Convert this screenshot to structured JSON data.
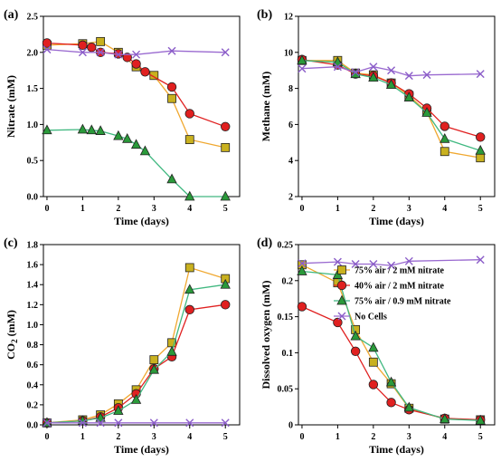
{
  "series_styles": [
    {
      "name": "75% air / 2 mM nitrate",
      "marker": "square",
      "fill": "#c9b11f",
      "line": "#f0a830"
    },
    {
      "name": "40% air / 2 mM nitrate",
      "marker": "circle",
      "fill": "#e02020",
      "line": "#e02020"
    },
    {
      "name": "75% air / 0.9 mM nitrate",
      "marker": "triangle",
      "fill": "#2a9a3a",
      "line": "#40b880"
    },
    {
      "name": "No Cells",
      "marker": "x",
      "fill": "#8a5cc8",
      "line": "#9a6ad0"
    }
  ],
  "chart_data": [
    {
      "type": "line",
      "panel_label": "(a)",
      "xlabel": "Time (days)",
      "ylabel": "Nitrate (mM)",
      "xlim": [
        -0.1,
        5.4
      ],
      "ylim": [
        0,
        2.5
      ],
      "xticks": [
        0,
        1,
        2,
        3,
        4,
        5
      ],
      "yticks": [
        0.0,
        0.5,
        1.0,
        1.5,
        2.0,
        2.5
      ],
      "ytick_labels": [
        "0.0",
        "0.5",
        "1.0",
        "1.5",
        "2.0",
        "2.5"
      ],
      "series": [
        {
          "name": "75% air / 2 mM nitrate",
          "x": [
            0,
            1,
            1.5,
            2,
            2.5,
            3,
            3.5,
            4,
            5
          ],
          "y": [
            2.1,
            2.12,
            2.15,
            2.0,
            1.8,
            1.68,
            1.36,
            0.79,
            0.68
          ]
        },
        {
          "name": "40% air / 2 mM nitrate",
          "x": [
            0,
            1,
            1.25,
            1.5,
            2,
            2.25,
            2.5,
            2.75,
            3.5,
            4,
            5
          ],
          "y": [
            2.13,
            2.1,
            2.07,
            2.0,
            1.98,
            1.93,
            1.84,
            1.73,
            1.52,
            1.15,
            0.97
          ]
        },
        {
          "name": "75% air / 0.9 mM nitrate",
          "x": [
            0,
            1,
            1.25,
            1.5,
            2,
            2.25,
            2.5,
            2.75,
            3.5,
            4,
            5
          ],
          "y": [
            0.92,
            0.93,
            0.92,
            0.91,
            0.84,
            0.8,
            0.72,
            0.63,
            0.24,
            0.0,
            0.0
          ]
        },
        {
          "name": "No Cells",
          "x": [
            0,
            1,
            1.5,
            2,
            2.5,
            3.5,
            5
          ],
          "y": [
            2.04,
            2.0,
            2.0,
            1.97,
            1.97,
            2.02,
            2.0
          ]
        }
      ]
    },
    {
      "type": "line",
      "panel_label": "(b)",
      "xlabel": "Time (days)",
      "ylabel": "Methane (mM)",
      "xlim": [
        -0.1,
        5.4
      ],
      "ylim": [
        2,
        12
      ],
      "xticks": [
        0,
        1,
        2,
        3,
        4,
        5
      ],
      "yticks": [
        2,
        4,
        6,
        8,
        10,
        12
      ],
      "ytick_labels": [
        "2",
        "4",
        "6",
        "8",
        "10",
        "12"
      ],
      "series": [
        {
          "name": "75% air / 2 mM nitrate",
          "x": [
            0,
            1,
            1.5,
            2,
            2.5,
            3,
            3.5,
            4,
            5
          ],
          "y": [
            9.55,
            9.55,
            8.85,
            8.75,
            8.3,
            7.6,
            6.7,
            4.5,
            4.15
          ]
        },
        {
          "name": "40% air / 2 mM nitrate",
          "x": [
            0,
            1,
            1.5,
            2,
            2.5,
            3,
            3.5,
            4,
            5
          ],
          "y": [
            9.6,
            9.3,
            8.8,
            8.7,
            8.3,
            7.7,
            6.9,
            5.9,
            5.3
          ]
        },
        {
          "name": "75% air / 0.9 mM nitrate",
          "x": [
            0,
            1,
            1.5,
            2,
            2.5,
            3,
            3.5,
            4,
            5
          ],
          "y": [
            9.55,
            9.45,
            8.8,
            8.6,
            8.2,
            7.5,
            6.65,
            5.2,
            4.55
          ]
        },
        {
          "name": "No Cells",
          "x": [
            0,
            1,
            1.5,
            2,
            2.5,
            3,
            3.5,
            5
          ],
          "y": [
            9.1,
            9.2,
            8.9,
            9.2,
            9.0,
            8.7,
            8.75,
            8.8
          ]
        }
      ]
    },
    {
      "type": "line",
      "panel_label": "(c)",
      "xlabel": "Time (days)",
      "ylabel": "CO2 (mM)",
      "xlim": [
        -0.1,
        5.4
      ],
      "ylim": [
        0,
        1.8
      ],
      "xticks": [
        0,
        1,
        2,
        3,
        4,
        5
      ],
      "yticks": [
        0.0,
        0.2,
        0.4,
        0.6,
        0.8,
        1.0,
        1.2,
        1.4,
        1.6,
        1.8
      ],
      "ytick_labels": [
        "0.0",
        "0.2",
        "0.4",
        "0.6",
        "0.8",
        "1.0",
        "1.2",
        "1.4",
        "1.6",
        "1.8"
      ],
      "series": [
        {
          "name": "75% air / 2 mM nitrate",
          "x": [
            0,
            1,
            1.5,
            2,
            2.5,
            3,
            3.5,
            4,
            5
          ],
          "y": [
            0.02,
            0.05,
            0.1,
            0.21,
            0.35,
            0.65,
            0.82,
            1.57,
            1.46
          ]
        },
        {
          "name": "40% air / 2 mM nitrate",
          "x": [
            0,
            1,
            1.5,
            2,
            2.5,
            3,
            3.5,
            4,
            5
          ],
          "y": [
            0.02,
            0.04,
            0.08,
            0.17,
            0.31,
            0.56,
            0.68,
            1.15,
            1.2
          ]
        },
        {
          "name": "75% air / 0.9 mM nitrate",
          "x": [
            0,
            1,
            1.5,
            2,
            2.5,
            3,
            3.5,
            4,
            5
          ],
          "y": [
            0.02,
            0.04,
            0.07,
            0.14,
            0.25,
            0.55,
            0.73,
            1.35,
            1.4
          ]
        },
        {
          "name": "No Cells",
          "x": [
            0,
            1,
            1.5,
            2,
            3,
            4,
            5
          ],
          "y": [
            0.02,
            0.02,
            0.02,
            0.02,
            0.02,
            0.02,
            0.02
          ]
        }
      ]
    },
    {
      "type": "line",
      "panel_label": "(d)",
      "xlabel": "Time (days)",
      "ylabel": "Dissolved oxygen (mM)",
      "xlim": [
        -0.1,
        5.4
      ],
      "ylim": [
        0,
        0.25
      ],
      "xticks": [
        0,
        1,
        2,
        3,
        4,
        5
      ],
      "yticks": [
        0,
        0.05,
        0.1,
        0.15,
        0.2,
        0.25
      ],
      "ytick_labels": [
        "0",
        "0.05",
        "0.1",
        "0.15",
        "0.2",
        "0.25"
      ],
      "legend": "top-right",
      "series": [
        {
          "name": "75% air / 2 mM nitrate",
          "x": [
            0,
            1,
            1.5,
            2,
            2.5,
            3,
            4,
            5
          ],
          "y": [
            0.222,
            0.197,
            0.132,
            0.087,
            0.057,
            0.023,
            0.008,
            0.007
          ]
        },
        {
          "name": "40% air / 2 mM nitrate",
          "x": [
            0,
            1,
            1.5,
            2,
            2.5,
            3,
            4,
            5
          ],
          "y": [
            0.164,
            0.142,
            0.102,
            0.056,
            0.031,
            0.021,
            0.009,
            0.007
          ]
        },
        {
          "name": "75% air / 0.9 mM nitrate",
          "x": [
            0,
            1,
            1.5,
            2,
            2.5,
            3,
            4,
            5
          ],
          "y": [
            0.213,
            0.208,
            0.123,
            0.107,
            0.059,
            0.024,
            0.008,
            0.006
          ]
        },
        {
          "name": "No Cells",
          "x": [
            0,
            1,
            1.5,
            2,
            2.5,
            3,
            5
          ],
          "y": [
            0.224,
            0.226,
            0.223,
            0.223,
            0.221,
            0.227,
            0.229
          ]
        }
      ]
    }
  ]
}
